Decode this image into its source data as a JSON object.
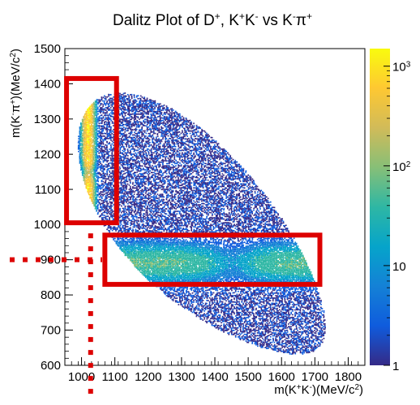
{
  "chart_data": {
    "type": "heatmap",
    "title": {
      "base": "Dalitz Plot of D",
      "sup1": "+",
      "mid": ", K",
      "sup2": "+",
      "mid2": "K",
      "sup3": "-",
      "mid3": " vs K",
      "sup4": "-",
      "mid4": "π",
      "sup5": "+"
    },
    "xlabel": {
      "p1": "m(K",
      "s1": "+",
      "p2": "K",
      "s2": "-",
      "p3": ")(MeV/c",
      "s3": "2",
      "p4": ")"
    },
    "ylabel": {
      "p1": "m(K",
      "s1": "-",
      "p2": "π",
      "s2": "+",
      "p3": ")(MeV/c",
      "s3": "2",
      "p4": ")"
    },
    "xlim": [
      950,
      1850
    ],
    "ylim": [
      600,
      1500
    ],
    "x_ticks": [
      "1000",
      "1100",
      "1200",
      "1300",
      "1400",
      "1500",
      "1600",
      "1700",
      "1800"
    ],
    "y_ticks": [
      "600",
      "700",
      "800",
      "900",
      "1000",
      "1100",
      "1200",
      "1300",
      "1400",
      "1500"
    ],
    "colorbar": {
      "scale": "log",
      "range": [
        1,
        1500
      ],
      "ticks": [
        {
          "value": 1,
          "base": "1",
          "exp": ""
        },
        {
          "value": 10,
          "base": "10",
          "exp": ""
        },
        {
          "value": 100,
          "base": "10",
          "exp": "2"
        },
        {
          "value": 1000,
          "base": "10",
          "exp": "3"
        }
      ],
      "colors": [
        "#352a87",
        "#0f5cdd",
        "#1481d6",
        "#06a4ca",
        "#2eb7a4",
        "#87bf77",
        "#d1bb59",
        "#fec832",
        "#f9fb0e"
      ]
    },
    "annotations": [
      {
        "type": "box",
        "label": "",
        "x": [
          955,
          1105
        ],
        "y": [
          1005,
          1415
        ],
        "color": "#dd0000"
      },
      {
        "type": "box",
        "label": "",
        "x": [
          1070,
          1715
        ],
        "y": [
          830,
          970
        ],
        "color": "#dd0000"
      },
      {
        "type": "dotted-line",
        "orientation": "horizontal",
        "at": 900,
        "color": "#dd0000"
      },
      {
        "type": "dotted-line",
        "orientation": "vertical",
        "at": 1020,
        "color": "#dd0000"
      }
    ],
    "density": {
      "kinematic_region": "D+ -> K+ K- pi+ Dalitz boundary",
      "bands": [
        {
          "name": "phi(1020)",
          "axis": "x",
          "center": 1019,
          "width": 8,
          "peak": 1000,
          "y_range": [
            1050,
            1350
          ]
        },
        {
          "name": "K*(892)",
          "axis": "y",
          "center": 892,
          "width": 25,
          "peak": 60,
          "x_range": [
            1100,
            1700
          ]
        }
      ]
    }
  }
}
